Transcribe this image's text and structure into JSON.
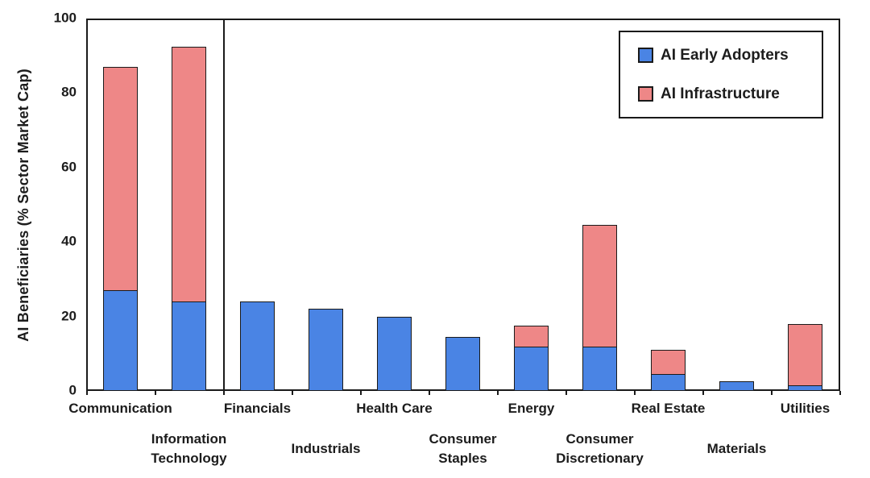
{
  "chart_data": {
    "type": "bar",
    "stacked": true,
    "title": "",
    "xlabel": "",
    "ylabel": "AI Beneficiaries (% Sector Market Cap)",
    "ylim": [
      0,
      100
    ],
    "yticks": [
      0,
      20,
      40,
      60,
      80,
      100
    ],
    "grid": false,
    "categories": [
      "Communication",
      "Information Technology",
      "Financials",
      "Industrials",
      "Health Care",
      "Consumer Staples",
      "Energy",
      "Consumer Discretionary",
      "Real Estate",
      "Materials",
      "Utilities"
    ],
    "category_lines": [
      [
        "Communication"
      ],
      [
        "Information",
        "Technology"
      ],
      [
        "Financials"
      ],
      [
        "Industrials"
      ],
      [
        "Health Care"
      ],
      [
        "Consumer",
        "Staples"
      ],
      [
        "Energy"
      ],
      [
        "Consumer",
        "Discretionary"
      ],
      [
        "Real Estate"
      ],
      [
        "Materials"
      ],
      [
        "Utilities"
      ]
    ],
    "series": [
      {
        "name": "AI Early Adopters",
        "color": "#4a84e4",
        "values": [
          27,
          24,
          24,
          22,
          20,
          14.5,
          12,
          12,
          4.5,
          2.5,
          1.5
        ]
      },
      {
        "name": "AI Infrastructure",
        "color": "#ee8787",
        "values": [
          60,
          68.5,
          0,
          0,
          0,
          0,
          5.5,
          32.5,
          6.5,
          0,
          16.5
        ]
      }
    ],
    "stack_totals": [
      87,
      92.5,
      24,
      22,
      20,
      14.5,
      17.5,
      44.5,
      11,
      2.5,
      18
    ],
    "separator_after_index": 1,
    "legend": {
      "position": "top-right",
      "items": [
        {
          "label": "AI Early Adopters",
          "color": "#4a84e4"
        },
        {
          "label": "AI Infrastructure",
          "color": "#ee8787"
        }
      ]
    },
    "axis_color": "#1a1a1a"
  }
}
